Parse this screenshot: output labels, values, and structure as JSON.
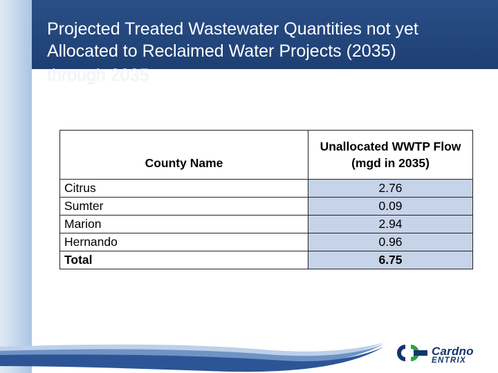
{
  "slide": {
    "title_line1": "Projected Treated Wastewater Quantities not yet",
    "title_line2": "Allocated to  Reclaimed Water Projects (2035)",
    "title_ghost": "through 2035"
  },
  "table": {
    "header_name": "County Name",
    "header_flow_line1": "Unallocated WWTP Flow",
    "header_flow_line2": "(mgd in 2035)",
    "rows": [
      {
        "county": "Citrus",
        "flow": "2.76"
      },
      {
        "county": "Sumter",
        "flow": "0.09"
      },
      {
        "county": "Marion",
        "flow": "2.94"
      },
      {
        "county": "Hernando",
        "flow": "0.96"
      }
    ],
    "total": {
      "label": "Total",
      "flow": "6.75"
    }
  },
  "logo": {
    "name": "Cardno",
    "sub": "ENTRIX"
  },
  "colors": {
    "title_bar": "#1d3f73",
    "flow_cell": "#c6d3e8",
    "logo": "#14356a",
    "logo_accent": "#2ca44a"
  }
}
